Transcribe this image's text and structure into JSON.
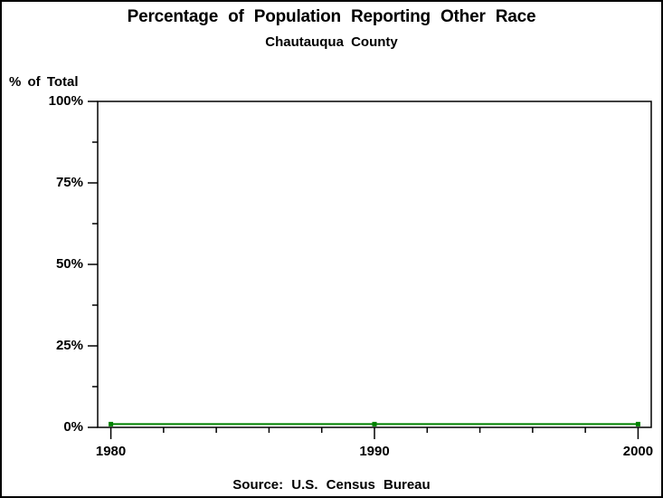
{
  "colors": {
    "line": "#008200",
    "axis": "#000000",
    "text": "#000000",
    "background": "#ffffff"
  },
  "chart_data": {
    "type": "line",
    "title": "Percentage of Population Reporting Other Race",
    "subtitle": "Chautauqua County",
    "footnote": "Source: U.S. Census Bureau",
    "xlabel": "",
    "ylabel": "% of Total",
    "x": [
      1980,
      1990,
      2000
    ],
    "xtick_labels": [
      "1980",
      "1990",
      "2000"
    ],
    "values": [
      1,
      1,
      1
    ],
    "xlim": [
      1979.5,
      2000.5
    ],
    "ylim": [
      0,
      100
    ],
    "yticks_major": [
      0,
      25,
      50,
      75,
      100
    ],
    "ytick_labels": [
      "0%",
      "25%",
      "50%",
      "75%",
      "100%"
    ],
    "yticks_minor_step": 12.5,
    "xticks_minor_step": 2,
    "grid": false,
    "legend": "none",
    "marker": "square"
  }
}
